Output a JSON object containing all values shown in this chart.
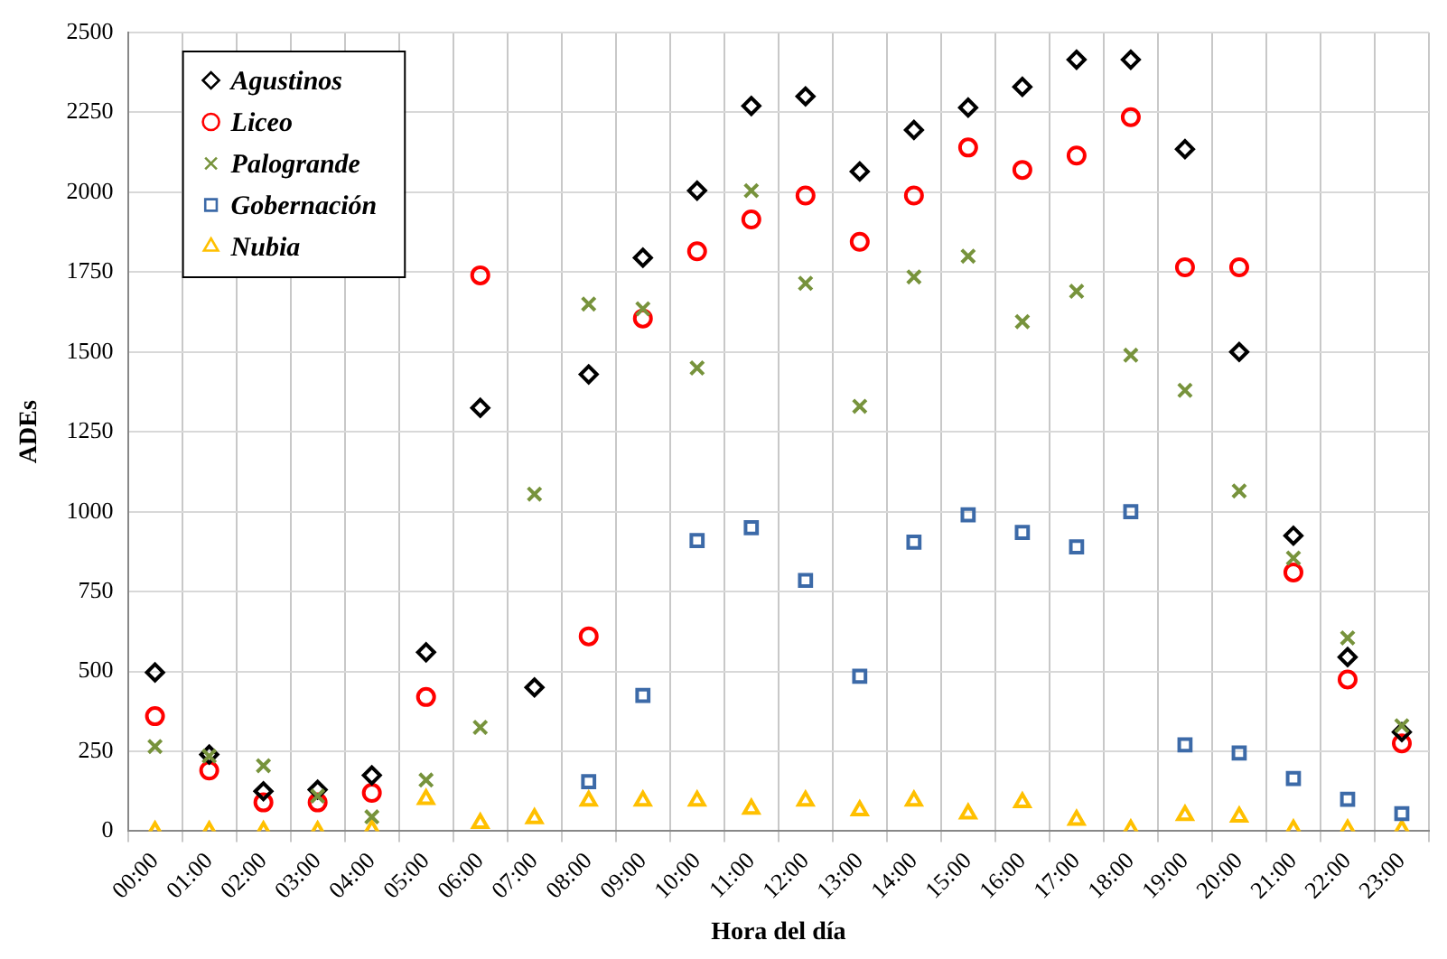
{
  "chart_data": {
    "type": "scatter",
    "xlabel": "Hora del día",
    "ylabel": "ADEs",
    "categories": [
      "00:00",
      "01:00",
      "02:00",
      "03:00",
      "04:00",
      "05:00",
      "06:00",
      "07:00",
      "08:00",
      "09:00",
      "10:00",
      "11:00",
      "12:00",
      "13:00",
      "14:00",
      "15:00",
      "16:00",
      "17:00",
      "18:00",
      "19:00",
      "20:00",
      "21:00",
      "22:00",
      "23:00"
    ],
    "ylim": [
      0,
      2500
    ],
    "yticks": [
      0,
      250,
      500,
      750,
      1000,
      1250,
      1500,
      1750,
      2000,
      2250,
      2500
    ],
    "grid": true,
    "legend": "top left",
    "series": [
      {
        "name": "Agustinos",
        "color": "#000000",
        "marker": "diamond",
        "values": [
          497,
          240,
          125,
          130,
          175,
          560,
          1325,
          450,
          1430,
          1795,
          2005,
          2270,
          2300,
          2065,
          2195,
          2265,
          2330,
          2415,
          2415,
          2135,
          1500,
          925,
          545,
          310
        ]
      },
      {
        "name": "Liceo",
        "color": "#ff0000",
        "marker": "circle",
        "values": [
          360,
          190,
          90,
          90,
          120,
          420,
          1740,
          null,
          610,
          1605,
          1815,
          1915,
          1990,
          1845,
          1990,
          2140,
          2070,
          2115,
          2235,
          1765,
          1765,
          810,
          475,
          275
        ]
      },
      {
        "name": "Palogrande",
        "color": "#77933c",
        "marker": "cross",
        "values": [
          265,
          235,
          205,
          110,
          45,
          160,
          325,
          1055,
          1650,
          1635,
          1450,
          2005,
          1715,
          1330,
          1735,
          1800,
          1595,
          1690,
          1490,
          1380,
          1065,
          855,
          605,
          330
        ]
      },
      {
        "name": "Gobernación",
        "color": "#3c6aa8",
        "marker": "square",
        "values": [
          null,
          null,
          null,
          null,
          null,
          null,
          null,
          null,
          155,
          425,
          910,
          950,
          785,
          485,
          905,
          990,
          935,
          890,
          1000,
          270,
          245,
          165,
          100,
          55
        ]
      },
      {
        "name": "Nubia",
        "color": "#ffc000",
        "marker": "triangle",
        "values": [
          0,
          0,
          0,
          0,
          5,
          100,
          25,
          40,
          95,
          95,
          95,
          70,
          95,
          65,
          95,
          55,
          90,
          35,
          5,
          50,
          45,
          5,
          5,
          5
        ]
      }
    ]
  }
}
